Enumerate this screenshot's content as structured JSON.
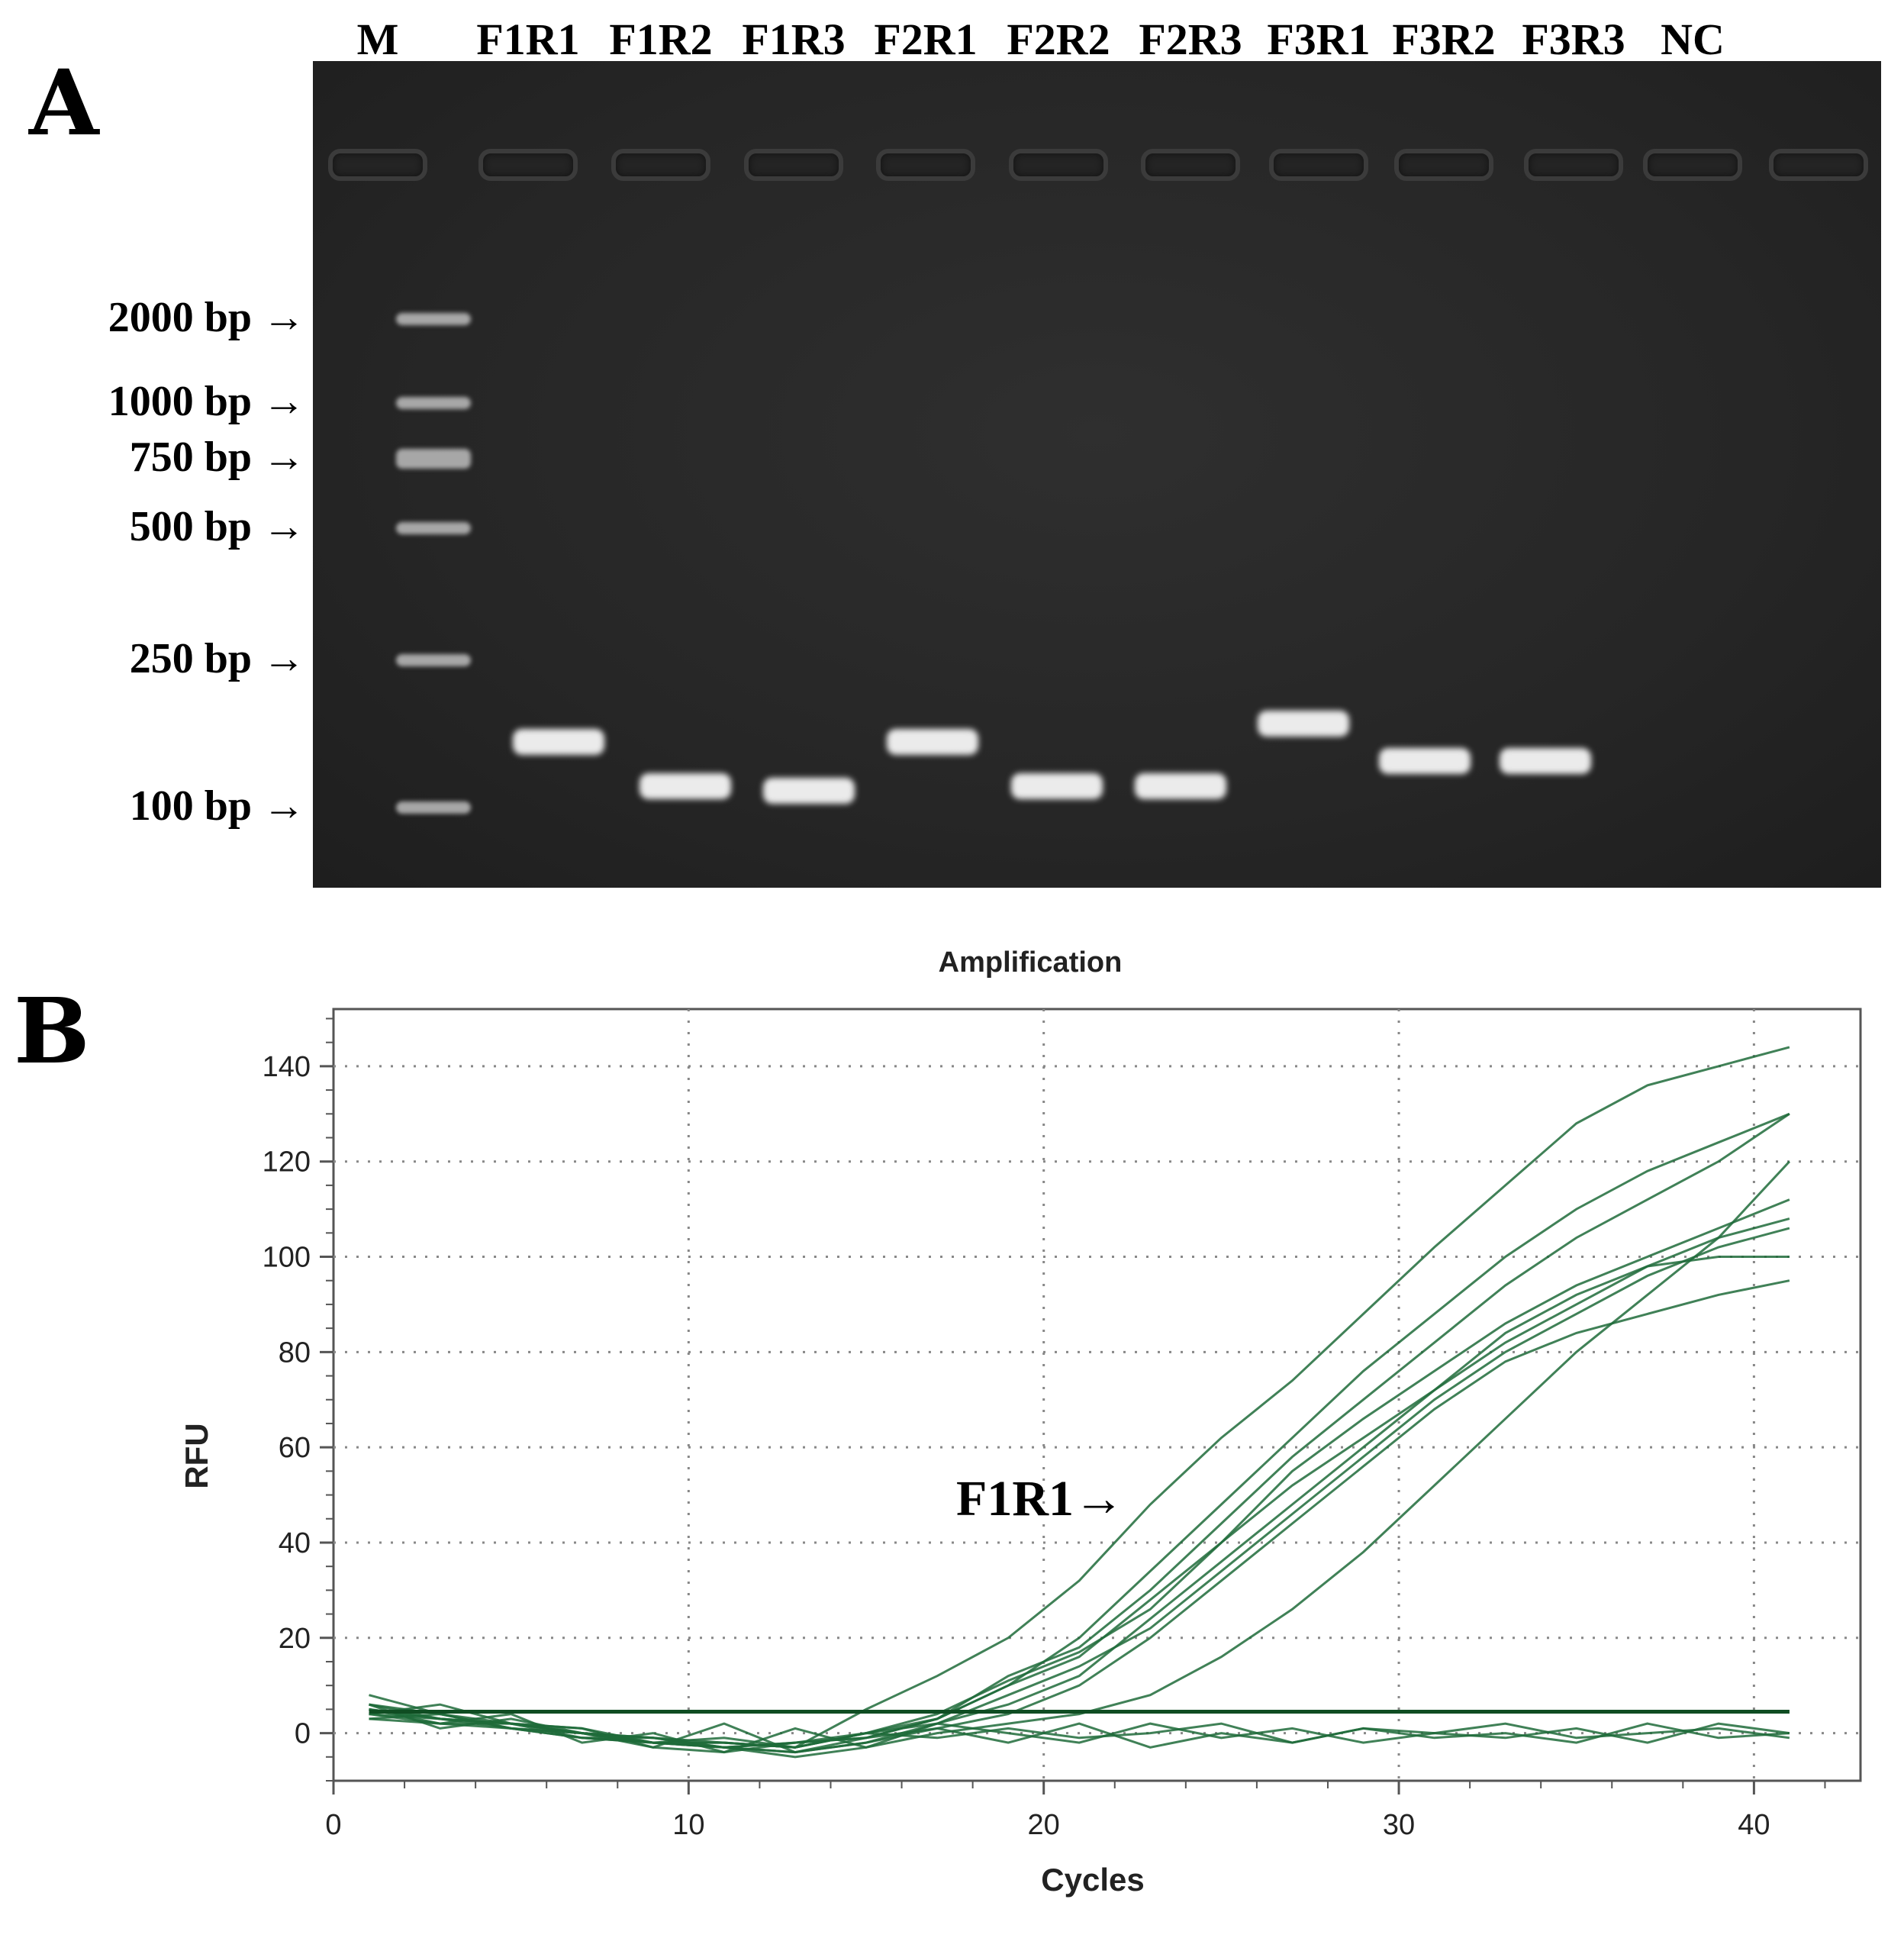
{
  "panel_a": {
    "letter": "A",
    "lane_labels": [
      "M",
      "F1R1",
      "F1R2",
      "F1R3",
      "F2R1",
      "F2R2",
      "F2R3",
      "F3R1",
      "F3R2",
      "F3R3",
      "NC"
    ],
    "ladder_labels": [
      "2000 bp →",
      "1000 bp →",
      "750 bp →",
      "500 bp →",
      "250 bp →",
      "100 bp →"
    ],
    "ladder_bp": [
      2000,
      1000,
      750,
      500,
      250,
      100
    ],
    "bands": [
      {
        "lane": "F1R1",
        "bp_rank": 2
      },
      {
        "lane": "F1R2",
        "bp_rank": 4
      },
      {
        "lane": "F1R3",
        "bp_rank": 5
      },
      {
        "lane": "F2R1",
        "bp_rank": 2
      },
      {
        "lane": "F2R2",
        "bp_rank": 4
      },
      {
        "lane": "F2R3",
        "bp_rank": 4
      },
      {
        "lane": "F3R1",
        "bp_rank": 1
      },
      {
        "lane": "F3R2",
        "bp_rank": 3
      },
      {
        "lane": "F3R3",
        "bp_rank": 3
      }
    ],
    "colors": {
      "gel": "#262626",
      "band": "#ebebeb"
    }
  },
  "panel_b": {
    "letter": "B",
    "annotation": "F1R1→"
  },
  "chart_data": {
    "type": "line",
    "title": "Amplification",
    "xlabel": "Cycles",
    "ylabel": "RFU",
    "xlim": [
      0,
      43
    ],
    "ylim": [
      -10,
      152
    ],
    "xticks": [
      0,
      10,
      20,
      30,
      40
    ],
    "yticks": [
      0,
      20,
      40,
      60,
      80,
      100,
      120,
      140
    ],
    "grid": true,
    "line_color": "#1e6b3a",
    "threshold": 4.5,
    "series": [
      {
        "x": [
          1,
          3,
          5,
          7,
          9,
          11,
          13,
          15,
          17,
          19,
          21,
          23,
          25,
          27,
          29,
          31,
          33,
          35,
          37,
          39,
          41
        ],
        "y": [
          6,
          4,
          2,
          0,
          -1,
          -2,
          -3,
          5,
          12,
          20,
          32,
          48,
          62,
          74,
          88,
          102,
          115,
          128,
          136,
          140,
          144
        ]
      },
      {
        "x": [
          1,
          3,
          5,
          7,
          9,
          11,
          13,
          15,
          17,
          19,
          21,
          23,
          25,
          27,
          29,
          31,
          33,
          35,
          37,
          39,
          41
        ],
        "y": [
          5,
          3,
          2,
          1,
          -2,
          -3,
          -2,
          0,
          3,
          10,
          20,
          34,
          48,
          62,
          76,
          88,
          100,
          110,
          118,
          124,
          130
        ]
      },
      {
        "x": [
          1,
          3,
          5,
          7,
          9,
          11,
          13,
          15,
          17,
          19,
          21,
          23,
          25,
          27,
          29,
          31,
          33,
          35,
          37,
          39,
          41
        ],
        "y": [
          4,
          3,
          1,
          0,
          -1,
          -3,
          -4,
          -1,
          3,
          12,
          18,
          30,
          44,
          58,
          70,
          82,
          94,
          104,
          112,
          120,
          130
        ]
      },
      {
        "x": [
          1,
          3,
          5,
          7,
          9,
          11,
          13,
          15,
          17,
          19,
          21,
          23,
          25,
          27,
          29,
          31,
          33,
          35,
          37,
          39,
          41
        ],
        "y": [
          5,
          2,
          2,
          -1,
          -2,
          -2,
          -3,
          0,
          4,
          11,
          17,
          26,
          40,
          55,
          66,
          76,
          86,
          94,
          100,
          106,
          112
        ]
      },
      {
        "x": [
          1,
          3,
          5,
          7,
          9,
          11,
          13,
          15,
          17,
          19,
          21,
          23,
          25,
          27,
          29,
          31,
          33,
          35,
          37,
          39,
          41
        ],
        "y": [
          3,
          4,
          1,
          0,
          -3,
          -4,
          -2,
          -1,
          3,
          10,
          16,
          28,
          40,
          52,
          62,
          72,
          82,
          90,
          98,
          104,
          108
        ]
      },
      {
        "x": [
          1,
          3,
          5,
          7,
          9,
          11,
          13,
          15,
          17,
          19,
          21,
          23,
          25,
          27,
          29,
          31,
          33,
          35,
          37,
          39,
          41
        ],
        "y": [
          6,
          3,
          2,
          0,
          -2,
          -2,
          -3,
          0,
          2,
          8,
          14,
          22,
          34,
          46,
          58,
          70,
          80,
          88,
          96,
          102,
          106
        ]
      },
      {
        "x": [
          1,
          3,
          5,
          7,
          9,
          11,
          13,
          15,
          17,
          19,
          21,
          23,
          25,
          27,
          29,
          31,
          33,
          35,
          37,
          39,
          41
        ],
        "y": [
          4,
          2,
          1,
          -1,
          -1,
          -3,
          -4,
          -2,
          2,
          6,
          12,
          24,
          36,
          48,
          60,
          72,
          84,
          92,
          98,
          100,
          100
        ]
      },
      {
        "x": [
          1,
          3,
          5,
          7,
          9,
          11,
          13,
          15,
          17,
          19,
          21,
          23,
          25,
          27,
          29,
          31,
          33,
          35,
          37,
          39,
          41
        ],
        "y": [
          5,
          3,
          2,
          0,
          -2,
          -3,
          -2,
          -1,
          1,
          4,
          10,
          20,
          32,
          44,
          56,
          68,
          78,
          84,
          88,
          92,
          95
        ]
      },
      {
        "x": [
          1,
          3,
          5,
          7,
          9,
          11,
          13,
          15,
          17,
          19,
          21,
          23,
          25,
          27,
          29,
          31,
          33,
          35,
          37,
          39,
          41
        ],
        "y": [
          8,
          4,
          1,
          -1,
          -2,
          -3,
          -5,
          -3,
          0,
          2,
          4,
          8,
          16,
          26,
          38,
          52,
          66,
          80,
          92,
          104,
          120
        ]
      },
      {
        "x": [
          1,
          3,
          5,
          7,
          9,
          11,
          13,
          15,
          17,
          19,
          21,
          23,
          25,
          27,
          29,
          31,
          33,
          35,
          37,
          39,
          41
        ],
        "y": [
          4,
          6,
          2,
          1,
          -3,
          2,
          -4,
          -2,
          1,
          -2,
          2,
          -3,
          0,
          -2,
          1,
          -1,
          0,
          -2,
          2,
          -1,
          0
        ]
      },
      {
        "x": [
          1,
          3,
          5,
          7,
          9,
          11,
          13,
          15,
          17,
          19,
          21,
          23,
          25,
          27,
          29,
          31,
          33,
          35,
          37,
          39,
          41
        ],
        "y": [
          3,
          2,
          4,
          -2,
          0,
          -4,
          1,
          -3,
          2,
          0,
          -2,
          2,
          -1,
          1,
          -2,
          0,
          2,
          -1,
          0,
          1,
          -1
        ]
      },
      {
        "x": [
          1,
          3,
          5,
          7,
          9,
          11,
          13,
          15,
          17,
          19,
          21,
          23,
          25,
          27,
          29,
          31,
          33,
          35,
          37,
          39,
          41
        ],
        "y": [
          6,
          1,
          3,
          0,
          -2,
          -1,
          -3,
          0,
          -1,
          1,
          -1,
          0,
          2,
          -2,
          1,
          0,
          -1,
          1,
          -2,
          2,
          0
        ]
      }
    ]
  }
}
